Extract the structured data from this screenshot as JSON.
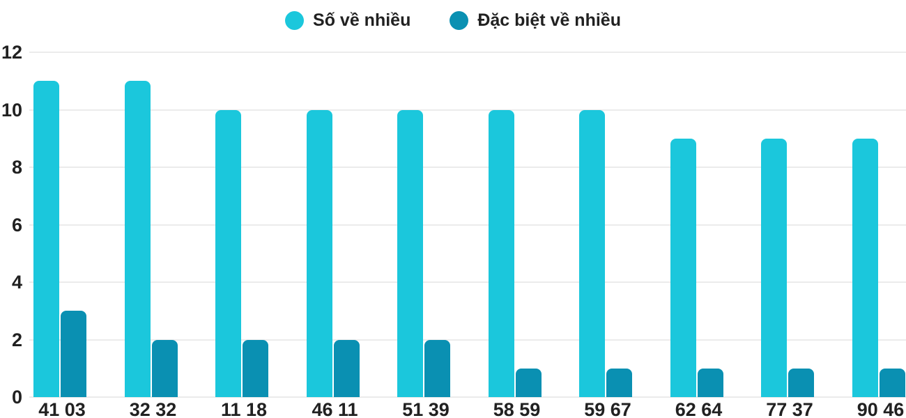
{
  "colors": {
    "text": "#212121",
    "gridline": "#ebebeb"
  },
  "chart_data": {
    "type": "bar",
    "categories": [
      "41 03",
      "32 32",
      "11 18",
      "46 11",
      "51 39",
      "58 59",
      "59 67",
      "62 64",
      "77 37",
      "90 46"
    ],
    "series": [
      {
        "name": "Số về nhiều",
        "color": "#1bc7dc",
        "values": [
          11,
          11,
          10,
          10,
          10,
          10,
          10,
          9,
          9,
          9
        ]
      },
      {
        "name": "Đặc biệt về nhiều",
        "color": "#0a90b2",
        "values": [
          3,
          2,
          2,
          2,
          2,
          1,
          1,
          1,
          1,
          1
        ]
      }
    ],
    "yticks": [
      0,
      2,
      4,
      6,
      8,
      10,
      12
    ],
    "ylim": [
      0,
      12
    ],
    "grid": true,
    "legend_position": "top"
  }
}
